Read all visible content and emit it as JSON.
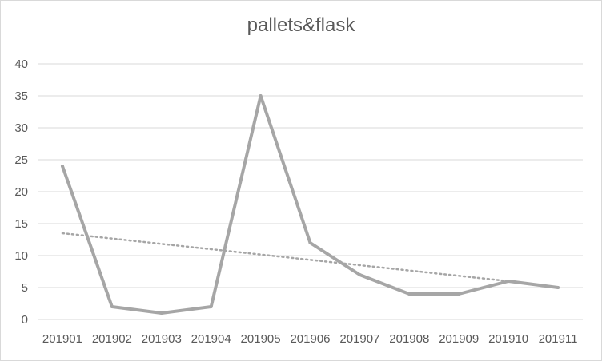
{
  "chart_data": {
    "type": "line",
    "title": "pallets&flask",
    "categories": [
      "201901",
      "201902",
      "201903",
      "201904",
      "201905",
      "201906",
      "201907",
      "201908",
      "201909",
      "201910",
      "201911"
    ],
    "series": [
      {
        "values": [
          24,
          2,
          1,
          2,
          35,
          12,
          7,
          4,
          4,
          6,
          5
        ],
        "color": "#a6a6a6"
      }
    ],
    "trendline": {
      "type": "linear",
      "style": "dotted",
      "color": "#a6a6a6",
      "start": 13.5,
      "end": 6.0
    },
    "ylim": [
      0,
      40
    ],
    "yticks": [
      0,
      5,
      10,
      15,
      20,
      25,
      30,
      35,
      40
    ],
    "grid": true,
    "legend": "none",
    "xlabel": "",
    "ylabel": ""
  }
}
